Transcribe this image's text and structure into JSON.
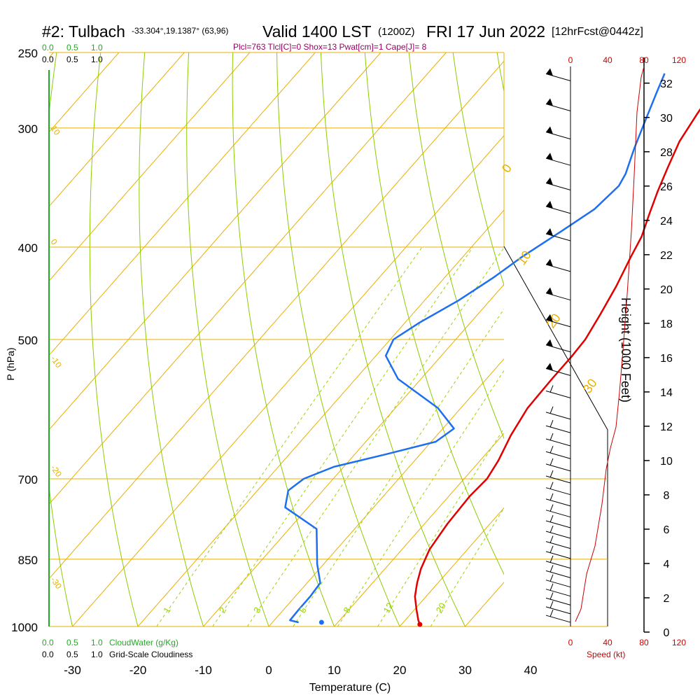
{
  "header": {
    "station": "#2: Tulbach",
    "coords": "-33.304°,19.1387° (63,96)",
    "valid": "Valid 1400 LST",
    "zulu": "(1200Z)",
    "date": "FRI 17 Jun 2022",
    "fcst": "[12hrFcst@0442z]",
    "indices": "Plcl=763 Tlcl[C]=0 Shox=13 Pwat[cm]=1 Cape[J]= 8"
  },
  "cloud_scale": {
    "green_ticks": [
      "0.0",
      "0.5",
      "1.0"
    ],
    "black_ticks": [
      "0.0",
      "0.5",
      "1.0"
    ],
    "cloudwater_label": "CloudWater (g/Kg)",
    "cloudiness_label": "Grid-Scale Cloudiness"
  },
  "speed_scale": {
    "top_ticks": [
      "0",
      "40",
      "80",
      "120"
    ],
    "bottom_ticks": [
      "0",
      "40",
      "80",
      "120"
    ],
    "label": "Speed (kt)"
  },
  "colors": {
    "temperature": "#e00000",
    "dewpoint": "#1e6ff0",
    "isotherm": "#e8b000",
    "dry_adiabat": "#8ccc00",
    "mixing_ratio": "#9ad400",
    "cloud": "#22aa22",
    "indices": "#990066",
    "speed": "#cc0000"
  },
  "chart_data": {
    "type": "line",
    "title": "#2: Tulbach Valid 1400 LST (1200Z) FRI 17 Jun 2022",
    "xlabel": "Temperature (C)",
    "ylabel": "P (hPa)",
    "y2label": "Height (1000 Feet)",
    "xlim": [
      -34,
      36
    ],
    "ylim": [
      1000,
      250
    ],
    "x_ticks": [
      -30,
      -20,
      -10,
      0,
      10,
      20,
      30,
      40
    ],
    "pressure_ticks": [
      250,
      300,
      400,
      500,
      700,
      850,
      1000
    ],
    "height_ticks": [
      0,
      2,
      4,
      6,
      8,
      10,
      12,
      14,
      16,
      18,
      20,
      22,
      24,
      26,
      28,
      30,
      32
    ],
    "isotherm_labels": [
      "10",
      "0",
      "-10",
      "-20",
      "-30",
      "0",
      "10",
      "20",
      "30"
    ],
    "mixing_ratio_labels": [
      "1",
      "2",
      "3",
      "5",
      "8",
      "12",
      "20"
    ],
    "series": [
      {
        "name": "Temperature",
        "points": [
          [
            22.8,
            995
          ],
          [
            22,
            985
          ],
          [
            20.3,
            960
          ],
          [
            18.3,
            930
          ],
          [
            16.8,
            900
          ],
          [
            15.5,
            870
          ],
          [
            14.2,
            830
          ],
          [
            13.5,
            780
          ],
          [
            13.2,
            730
          ],
          [
            13.5,
            700
          ],
          [
            12.8,
            670
          ],
          [
            11.3,
            630
          ],
          [
            10.2,
            590
          ],
          [
            10,
            550
          ],
          [
            10,
            520
          ],
          [
            9.8,
            500
          ],
          [
            8.7,
            470
          ],
          [
            7.4,
            440
          ],
          [
            5.7,
            410
          ],
          [
            4.6,
            390
          ],
          [
            2.8,
            370
          ],
          [
            1,
            350
          ],
          [
            -0.7,
            330
          ],
          [
            -2.4,
            310
          ],
          [
            -3.4,
            290
          ],
          [
            -4.3,
            270
          ],
          [
            -4.9,
            255
          ]
        ]
      },
      {
        "name": "Dewpoint",
        "points": [
          [
            4,
            990
          ],
          [
            2.4,
            985
          ],
          [
            2.3,
            960
          ],
          [
            2.3,
            930
          ],
          [
            2,
            900
          ],
          [
            -1,
            860
          ],
          [
            -3,
            830
          ],
          [
            -5.8,
            790
          ],
          [
            -13.5,
            750
          ],
          [
            -15.3,
            720
          ],
          [
            -14.5,
            700
          ],
          [
            -11.5,
            680
          ],
          [
            -5.3,
            660
          ],
          [
            0.7,
            640
          ],
          [
            1.7,
            620
          ],
          [
            -3.5,
            590
          ],
          [
            -13.5,
            550
          ],
          [
            -18.5,
            520
          ],
          [
            -19.5,
            500
          ],
          [
            -17.8,
            480
          ],
          [
            -14.8,
            455
          ],
          [
            -12.5,
            430
          ],
          [
            -11,
            410
          ],
          [
            -8.4,
            385
          ],
          [
            -6.3,
            365
          ],
          [
            -5.7,
            345
          ],
          [
            -6.3,
            335
          ],
          [
            -8.4,
            315
          ],
          [
            -10.4,
            295
          ],
          [
            -12.5,
            275
          ],
          [
            -13.8,
            263
          ]
        ]
      }
    ],
    "surface_dewpoint_dot": [
      7.5,
      990
    ],
    "surface_temperature_dot": [
      22.8,
      995
    ]
  }
}
